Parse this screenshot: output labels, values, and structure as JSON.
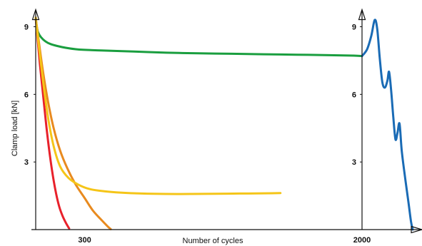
{
  "chart_data": {
    "type": "line",
    "title": "",
    "xlabel": "Number of cycles",
    "ylabel": "Clamp load [kN]",
    "x_axis": {
      "ticks": [
        {
          "value": 300,
          "label": "300"
        },
        {
          "value": 2000,
          "label": "2000"
        }
      ]
    },
    "y_axis": {
      "ylim": [
        0,
        9.5
      ],
      "ticks": [
        {
          "value": 3,
          "label": "3"
        },
        {
          "value": 6,
          "label": "6"
        },
        {
          "value": 9,
          "label": "9"
        }
      ]
    },
    "y_axis_right": {
      "ticks": [
        {
          "value": 3,
          "label": "3"
        },
        {
          "value": 6,
          "label": "6"
        },
        {
          "value": 9,
          "label": "9"
        }
      ]
    },
    "grid": false,
    "legend": "none",
    "series": [
      {
        "color": "#1a9e3f",
        "points": [
          [
            0,
            9.4
          ],
          [
            15,
            8.75
          ],
          [
            60,
            8.35
          ],
          [
            130,
            8.15
          ],
          [
            250,
            8.0
          ],
          [
            400,
            7.95
          ],
          [
            600,
            7.9
          ],
          [
            800,
            7.85
          ],
          [
            1000,
            7.82
          ],
          [
            1200,
            7.8
          ],
          [
            1400,
            7.78
          ],
          [
            1600,
            7.76
          ],
          [
            1800,
            7.74
          ],
          [
            1950,
            7.72
          ],
          [
            2000,
            7.7
          ]
        ]
      },
      {
        "color": "#1a6bb5",
        "points": [
          [
            2000,
            7.7
          ],
          [
            2030,
            8.0
          ],
          [
            2055,
            8.6
          ],
          [
            2075,
            9.3
          ],
          [
            2090,
            8.9
          ],
          [
            2105,
            7.6
          ],
          [
            2120,
            6.55
          ],
          [
            2135,
            6.3
          ],
          [
            2150,
            6.6
          ],
          [
            2160,
            7.0
          ],
          [
            2172,
            6.2
          ],
          [
            2185,
            5.0
          ],
          [
            2198,
            4.0
          ],
          [
            2210,
            4.3
          ],
          [
            2222,
            4.7
          ],
          [
            2235,
            3.5
          ],
          [
            2255,
            2.3
          ],
          [
            2275,
            1.2
          ],
          [
            2290,
            0.35
          ],
          [
            2300,
            0.0
          ]
        ]
      },
      {
        "color": "#e8212b",
        "points": [
          [
            0,
            9.4
          ],
          [
            10,
            8.6
          ],
          [
            25,
            7.4
          ],
          [
            45,
            6.0
          ],
          [
            65,
            4.6
          ],
          [
            85,
            3.4
          ],
          [
            105,
            2.4
          ],
          [
            125,
            1.6
          ],
          [
            145,
            1.0
          ],
          [
            165,
            0.6
          ],
          [
            185,
            0.3
          ],
          [
            205,
            0.05
          ]
        ]
      },
      {
        "color": "#e88a1f",
        "points": [
          [
            0,
            9.4
          ],
          [
            20,
            8.3
          ],
          [
            45,
            7.0
          ],
          [
            75,
            5.7
          ],
          [
            110,
            4.5
          ],
          [
            150,
            3.5
          ],
          [
            195,
            2.7
          ],
          [
            245,
            2.0
          ],
          [
            300,
            1.4
          ],
          [
            350,
            0.85
          ],
          [
            400,
            0.45
          ],
          [
            440,
            0.15
          ],
          [
            460,
            0.02
          ]
        ]
      },
      {
        "color": "#f5c518",
        "points": [
          [
            0,
            9.4
          ],
          [
            20,
            8.1
          ],
          [
            45,
            6.6
          ],
          [
            75,
            5.0
          ],
          [
            110,
            3.7
          ],
          [
            150,
            2.8
          ],
          [
            200,
            2.3
          ],
          [
            260,
            2.0
          ],
          [
            330,
            1.8
          ],
          [
            420,
            1.7
          ],
          [
            520,
            1.64
          ],
          [
            650,
            1.6
          ],
          [
            800,
            1.58
          ],
          [
            950,
            1.58
          ],
          [
            1100,
            1.59
          ],
          [
            1250,
            1.6
          ],
          [
            1400,
            1.61
          ],
          [
            1500,
            1.62
          ]
        ]
      }
    ]
  }
}
